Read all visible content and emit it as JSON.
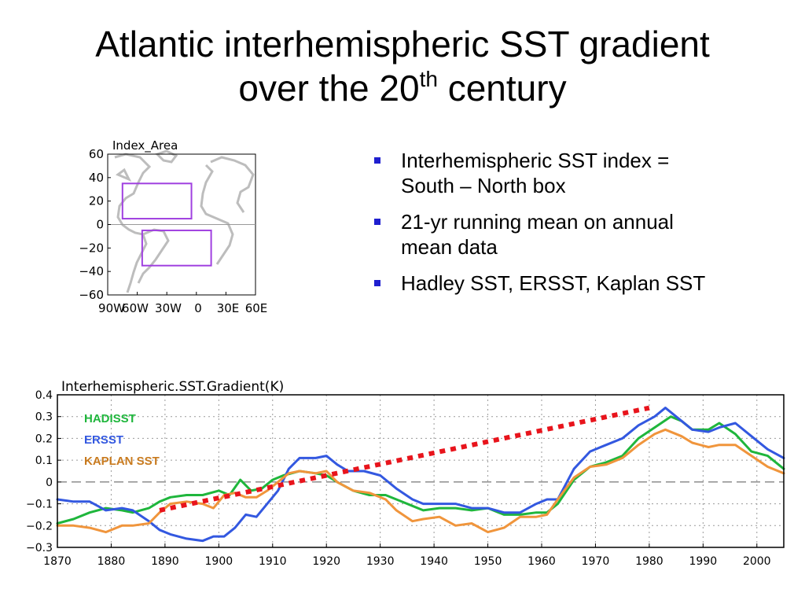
{
  "slide": {
    "title_main": "Atlantic interhemispheric SST gradient",
    "title_line2_prefix": "over the 20",
    "title_sup": "th",
    "title_line2_suffix": " century",
    "bullets": [
      {
        "line1": "Interhemispheric SST index =",
        "line2": "South – North box"
      },
      {
        "line1": "21-yr running mean on annual",
        "line2": "mean data"
      },
      {
        "line1": "Hadley SST, ERSST, Kaplan SST",
        "line2": ""
      }
    ]
  },
  "chart_data": [
    {
      "type": "map",
      "title": "Index_Area",
      "y_ticks": [
        "60",
        "40",
        "20",
        "0",
        "−20",
        "−40",
        "−60"
      ],
      "x_ticks": [
        "90W",
        "60W",
        "30W",
        "0",
        "30E",
        "60E"
      ],
      "xlim": [
        -90,
        60
      ],
      "ylim": [
        -60,
        60
      ],
      "boxes": [
        {
          "name": "North box",
          "lon": [
            -75,
            -5
          ],
          "lat": [
            5,
            35
          ]
        },
        {
          "name": "South box",
          "lon": [
            -55,
            15
          ],
          "lat": [
            -35,
            -5
          ]
        }
      ],
      "box_color": "#a040e0"
    },
    {
      "type": "line",
      "title": "Interhemispheric.SST.Gradient(K)",
      "xlim": [
        1870,
        2005
      ],
      "ylim": [
        -0.3,
        0.4
      ],
      "x_ticks": [
        1870,
        1880,
        1890,
        1900,
        1910,
        1920,
        1930,
        1940,
        1950,
        1960,
        1970,
        1980,
        1990,
        2000
      ],
      "y_ticks": [
        -0.3,
        -0.2,
        -0.1,
        0,
        0.1,
        0.2,
        0.3,
        0.4
      ],
      "grid": true,
      "series": [
        {
          "name": "HADISST",
          "color": "#1fb63c",
          "x": [
            1870,
            1873,
            1876,
            1879,
            1882,
            1884,
            1887,
            1889,
            1891,
            1894,
            1897,
            1900,
            1902,
            1904,
            1906,
            1908,
            1910,
            1912,
            1915,
            1918,
            1920,
            1922,
            1925,
            1928,
            1931,
            1933,
            1936,
            1938,
            1941,
            1944,
            1947,
            1950,
            1953,
            1956,
            1959,
            1961,
            1963,
            1966,
            1969,
            1972,
            1975,
            1978,
            1981,
            1984,
            1986,
            1988,
            1991,
            1993,
            1996,
            1999,
            2002,
            2005
          ],
          "values": [
            -0.19,
            -0.17,
            -0.14,
            -0.12,
            -0.13,
            -0.14,
            -0.12,
            -0.09,
            -0.07,
            -0.06,
            -0.06,
            -0.04,
            -0.06,
            0.01,
            -0.04,
            -0.03,
            0.01,
            0.03,
            0.05,
            0.04,
            0.03,
            0.0,
            -0.04,
            -0.06,
            -0.06,
            -0.08,
            -0.11,
            -0.13,
            -0.12,
            -0.12,
            -0.13,
            -0.12,
            -0.15,
            -0.15,
            -0.14,
            -0.14,
            -0.1,
            0.01,
            0.07,
            0.09,
            0.12,
            0.2,
            0.25,
            0.3,
            0.28,
            0.24,
            0.24,
            0.27,
            0.22,
            0.14,
            0.12,
            0.06
          ]
        },
        {
          "name": "ERSST",
          "color": "#3358e0",
          "x": [
            1870,
            1873,
            1876,
            1879,
            1882,
            1884,
            1887,
            1889,
            1891,
            1894,
            1897,
            1899,
            1901,
            1903,
            1905,
            1907,
            1909,
            1911,
            1913,
            1915,
            1918,
            1920,
            1922,
            1924,
            1927,
            1930,
            1933,
            1936,
            1938,
            1941,
            1944,
            1947,
            1950,
            1953,
            1956,
            1959,
            1961,
            1963,
            1966,
            1969,
            1972,
            1975,
            1978,
            1981,
            1983,
            1985,
            1988,
            1991,
            1993,
            1996,
            1999,
            2002,
            2005
          ],
          "values": [
            -0.08,
            -0.09,
            -0.09,
            -0.13,
            -0.12,
            -0.13,
            -0.18,
            -0.22,
            -0.24,
            -0.26,
            -0.27,
            -0.25,
            -0.25,
            -0.21,
            -0.15,
            -0.16,
            -0.1,
            -0.04,
            0.06,
            0.11,
            0.11,
            0.12,
            0.08,
            0.05,
            0.05,
            0.03,
            -0.03,
            -0.08,
            -0.1,
            -0.1,
            -0.1,
            -0.12,
            -0.12,
            -0.14,
            -0.14,
            -0.1,
            -0.08,
            -0.08,
            0.06,
            0.14,
            0.17,
            0.2,
            0.26,
            0.3,
            0.34,
            0.3,
            0.24,
            0.23,
            0.25,
            0.27,
            0.21,
            0.15,
            0.11
          ]
        },
        {
          "name": "KAPLAN SST",
          "color": "#f0953c",
          "x": [
            1870,
            1873,
            1876,
            1879,
            1882,
            1884,
            1887,
            1889,
            1891,
            1894,
            1897,
            1899,
            1901,
            1903,
            1905,
            1907,
            1909,
            1911,
            1913,
            1915,
            1918,
            1920,
            1922,
            1925,
            1928,
            1931,
            1933,
            1936,
            1938,
            1941,
            1944,
            1947,
            1950,
            1953,
            1956,
            1959,
            1961,
            1963,
            1966,
            1969,
            1972,
            1975,
            1978,
            1981,
            1983,
            1986,
            1988,
            1991,
            1993,
            1996,
            1999,
            2002,
            2005
          ],
          "values": [
            -0.2,
            -0.2,
            -0.21,
            -0.23,
            -0.2,
            -0.2,
            -0.19,
            -0.14,
            -0.1,
            -0.09,
            -0.1,
            -0.12,
            -0.06,
            -0.05,
            -0.07,
            -0.07,
            -0.04,
            0.0,
            0.04,
            0.05,
            0.04,
            0.05,
            0.0,
            -0.04,
            -0.05,
            -0.08,
            -0.13,
            -0.18,
            -0.17,
            -0.16,
            -0.2,
            -0.19,
            -0.23,
            -0.21,
            -0.16,
            -0.16,
            -0.15,
            -0.08,
            0.02,
            0.07,
            0.08,
            0.11,
            0.17,
            0.22,
            0.24,
            0.21,
            0.18,
            0.16,
            0.17,
            0.17,
            0.12,
            0.07,
            0.04
          ]
        }
      ],
      "annotation": {
        "type": "trend-line",
        "color": "#e8141c",
        "from": [
          1889,
          -0.13
        ],
        "to": [
          1980,
          0.34
        ]
      },
      "zero_line": true
    }
  ]
}
